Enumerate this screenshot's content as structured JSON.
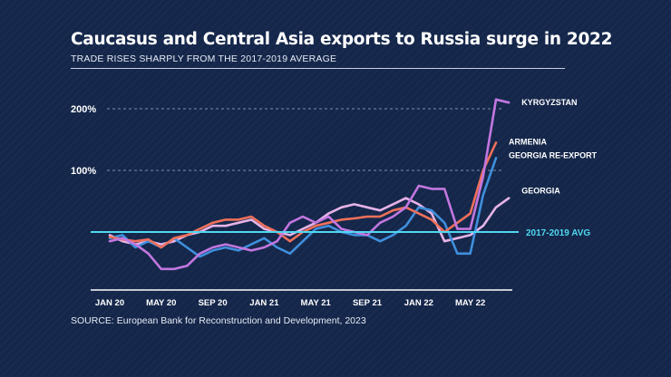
{
  "chart_data": {
    "type": "line",
    "title": "Caucasus and Central Asia exports to Russia surge in 2022",
    "subtitle": "TRADE RISES SHARPLY FROM THE 2017-2019 AVERAGE",
    "source": "SOURCE: European Bank for Reconstruction and Development, 2023",
    "xlabel": "",
    "ylabel": "",
    "x_tick_labels": [
      "JAN 20",
      "MAY 20",
      "SEP 20",
      "JAN 21",
      "MAY 21",
      "SEP 21",
      "JAN 22",
      "MAY 22"
    ],
    "y_tick_labels": [
      "100%",
      "200%"
    ],
    "y_ticks": [
      100,
      200
    ],
    "ylim": [
      -100,
      230
    ],
    "grid": true,
    "reference_line": {
      "label": "2017-2019 AVG",
      "value": 0,
      "color": "#4fd8f0"
    },
    "series": [
      {
        "name": "KYRGYZSTAN",
        "color": "#c277e0",
        "values": [
          -15,
          -10,
          -20,
          -35,
          -60,
          -60,
          -55,
          -35,
          -25,
          -20,
          -25,
          -30,
          -25,
          -15,
          15,
          25,
          15,
          25,
          5,
          0,
          -5,
          15,
          25,
          40,
          75,
          70,
          70,
          5,
          5,
          90,
          215,
          210
        ]
      },
      {
        "name": "ARMENIA",
        "color": "#f0705a",
        "values": [
          -8,
          -12,
          -15,
          -12,
          -25,
          -10,
          -5,
          5,
          15,
          20,
          20,
          25,
          10,
          0,
          -15,
          0,
          10,
          15,
          20,
          22,
          25,
          25,
          35,
          40,
          30,
          20,
          0,
          15,
          30,
          100,
          145
        ]
      },
      {
        "name": "GEORGIA RE-EXPORT",
        "color": "#3f8fdc",
        "values": [
          -10,
          -5,
          -25,
          -15,
          -25,
          -10,
          -25,
          -40,
          -30,
          -25,
          -30,
          -20,
          -10,
          -25,
          -35,
          -15,
          5,
          10,
          0,
          -5,
          -5,
          -15,
          -5,
          10,
          40,
          35,
          15,
          -35,
          -35,
          60,
          120
        ]
      },
      {
        "name": "GEORGIA",
        "color": "#e6b3e6",
        "values": [
          -5,
          -15,
          -20,
          -15,
          -20,
          -15,
          -5,
          0,
          10,
          10,
          15,
          20,
          5,
          0,
          -5,
          5,
          15,
          30,
          40,
          45,
          40,
          35,
          45,
          55,
          45,
          30,
          -15,
          -10,
          -5,
          10,
          40,
          55
        ]
      }
    ]
  }
}
